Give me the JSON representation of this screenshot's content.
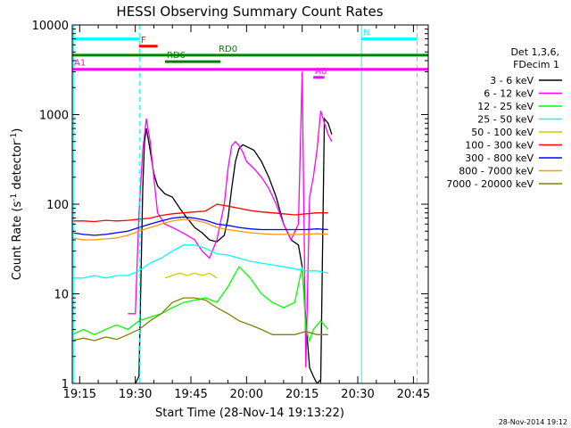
{
  "chart_data": {
    "type": "line",
    "title": "HESSI Observing Summary Count Rates",
    "xlabel": "Start Time (28-Nov-14 19:13:22)",
    "ylabel_main": "Count Rate (s",
    "ylabel_sup1": "-1",
    "ylabel_mid": " detector",
    "ylabel_sup2": "-1",
    "ylabel_end": ")",
    "yscale": "log",
    "ylim": [
      1,
      10000
    ],
    "xlim_minutes": [
      19.0,
      115.0
    ],
    "x_ticks": [
      {
        "minute": 21.0,
        "label": "19:15"
      },
      {
        "minute": 36.0,
        "label": "19:30"
      },
      {
        "minute": 51.0,
        "label": "19:45"
      },
      {
        "minute": 66.0,
        "label": "20:00"
      },
      {
        "minute": 81.0,
        "label": "20:15"
      },
      {
        "minute": 96.0,
        "label": "20:30"
      },
      {
        "minute": 111.0,
        "label": "20:45"
      }
    ],
    "y_ticks": [
      {
        "value": 1,
        "label": "1"
      },
      {
        "value": 10,
        "label": "10"
      },
      {
        "value": 100,
        "label": "100"
      },
      {
        "value": 1000,
        "label": "1000"
      },
      {
        "value": 10000,
        "label": "10000"
      }
    ],
    "legend": {
      "position": "right",
      "header1": "Det 1,3,6,",
      "header2": "FDecim 1",
      "entries": [
        {
          "label": "3 - 6 keV",
          "color": "#000000"
        },
        {
          "label": "6 - 12 keV",
          "color": "#ff00ff"
        },
        {
          "label": "12 - 25 keV",
          "color": "#00ff00"
        },
        {
          "label": "25 - 50 keV",
          "color": "#00ffff"
        },
        {
          "label": "50 - 100 keV",
          "color": "#cccc00"
        },
        {
          "label": "100 - 300 keV",
          "color": "#ff0000"
        },
        {
          "label": "300 - 800 keV",
          "color": "#0000ff"
        },
        {
          "label": "800 - 7000 keV",
          "color": "#ff9900"
        },
        {
          "label": "7000 - 20000 keV",
          "color": "#808000"
        }
      ]
    },
    "flag_bars": [
      {
        "label": "N",
        "color": "#00ffff",
        "segments": [
          [
            19.0,
            37.2
          ],
          [
            97.0,
            112.0
          ]
        ],
        "level": 7000
      },
      {
        "label": "F",
        "color": "#ff0000",
        "segments": [
          [
            37.0,
            42.0
          ]
        ],
        "level": 5800
      },
      {
        "label": "RD0",
        "color": "#008000",
        "segments": [
          [
            19.0,
            58.0
          ],
          [
            58.0,
            115.0
          ]
        ],
        "level": 4600
      },
      {
        "label": "RD6",
        "color": "#008000",
        "segments": [
          [
            44.0,
            59.0
          ]
        ],
        "level": 3900
      },
      {
        "label": "A1",
        "color": "#ff00ff",
        "segments": [
          [
            19.0,
            115.0
          ]
        ],
        "level": 3200
      },
      {
        "label": "A0",
        "color": "#ff00ff",
        "segments": [
          [
            84.0,
            87.0
          ]
        ],
        "level": 2600
      }
    ],
    "vlines": [
      {
        "minute": 19.3,
        "color": "#00ffff",
        "style": "solid"
      },
      {
        "minute": 37.2,
        "color": "#00ffff",
        "style": "dashed"
      },
      {
        "minute": 97.0,
        "color": "#00ffff",
        "style": "solid"
      },
      {
        "minute": 112.0,
        "color": "#00ffff",
        "style": "dashed"
      }
    ],
    "series": [
      {
        "name": "3 - 6 keV",
        "color": "#000000",
        "x": [
          36,
          37,
          38,
          38.5,
          39,
          40,
          41,
          42,
          44,
          46,
          48,
          50,
          52,
          54,
          56,
          58,
          60,
          61,
          62,
          63,
          64,
          65,
          66,
          67,
          68,
          70,
          72,
          74,
          76,
          78,
          80,
          81,
          82,
          83,
          84,
          85,
          86,
          87,
          88,
          89
        ],
        "y": [
          1,
          1.2,
          150,
          500,
          700,
          400,
          220,
          160,
          130,
          120,
          90,
          70,
          55,
          48,
          40,
          38,
          45,
          70,
          150,
          300,
          420,
          460,
          440,
          420,
          400,
          300,
          200,
          120,
          60,
          40,
          35,
          20,
          5,
          1.5,
          1.2,
          1,
          1.1,
          900,
          800,
          600
        ]
      },
      {
        "name": "6 - 12 keV",
        "color": "#ff00ff",
        "x": [
          34,
          35,
          36,
          37,
          38,
          39,
          40,
          41,
          42,
          44,
          46,
          48,
          50,
          52,
          54,
          56,
          58,
          60,
          61,
          62,
          63,
          64,
          65,
          66,
          68,
          70,
          72,
          74,
          76,
          78,
          80,
          81,
          82,
          83,
          84,
          85,
          86,
          87,
          88,
          89
        ],
        "y": [
          6,
          6,
          6,
          80,
          400,
          900,
          500,
          200,
          80,
          60,
          55,
          50,
          45,
          40,
          30,
          25,
          40,
          100,
          250,
          450,
          500,
          450,
          380,
          300,
          250,
          200,
          150,
          100,
          60,
          40,
          60,
          3000,
          1.5,
          120,
          200,
          400,
          1100,
          800,
          600,
          500
        ]
      },
      {
        "name": "12 - 25 keV",
        "color": "#00ff00",
        "x": [
          19,
          22,
          25,
          28,
          31,
          34,
          37,
          40,
          43,
          46,
          49,
          52,
          55,
          58,
          61,
          64,
          67,
          70,
          73,
          76,
          79,
          81,
          82,
          83,
          84,
          86,
          88
        ],
        "y": [
          3.5,
          4,
          3.5,
          4,
          4.5,
          4,
          5,
          5.5,
          6,
          7,
          8,
          8.5,
          9,
          8,
          12,
          20,
          15,
          10,
          8,
          7,
          8,
          20,
          4,
          3,
          4,
          5,
          4
        ]
      },
      {
        "name": "25 - 50 keV",
        "color": "#00ffff",
        "x": [
          19,
          22,
          25,
          28,
          31,
          34,
          37,
          40,
          43,
          46,
          49,
          52,
          55,
          58,
          61,
          64,
          67,
          70,
          73,
          76,
          79,
          82,
          85,
          88
        ],
        "y": [
          15,
          15,
          16,
          15,
          16,
          16,
          18,
          22,
          25,
          30,
          35,
          35,
          32,
          28,
          27,
          25,
          23,
          22,
          21,
          20,
          19,
          18,
          18,
          17
        ]
      },
      {
        "name": "50 - 100 keV",
        "color": "#cccc00",
        "x": [
          44,
          46,
          48,
          50,
          52,
          54,
          56,
          58
        ],
        "y": [
          15,
          16,
          17,
          16,
          17,
          16,
          17,
          15
        ]
      },
      {
        "name": "100 - 300 keV",
        "color": "#ff0000",
        "x": [
          19,
          22,
          25,
          28,
          31,
          34,
          37,
          40,
          43,
          46,
          49,
          52,
          55,
          58,
          61,
          64,
          67,
          70,
          73,
          76,
          79,
          82,
          85,
          88
        ],
        "y": [
          65,
          65,
          64,
          66,
          65,
          66,
          68,
          70,
          75,
          78,
          80,
          82,
          84,
          100,
          95,
          90,
          85,
          82,
          80,
          78,
          76,
          78,
          80,
          80
        ]
      },
      {
        "name": "300 - 800 keV",
        "color": "#0000ff",
        "x": [
          19,
          22,
          25,
          28,
          31,
          34,
          37,
          40,
          43,
          46,
          49,
          52,
          55,
          58,
          61,
          64,
          67,
          70,
          73,
          76,
          79,
          82,
          85,
          88
        ],
        "y": [
          48,
          46,
          45,
          46,
          48,
          50,
          55,
          60,
          65,
          70,
          72,
          70,
          66,
          60,
          58,
          55,
          53,
          52,
          52,
          52,
          52,
          52,
          53,
          52
        ]
      },
      {
        "name": "800 - 7000 keV",
        "color": "#ff9900",
        "x": [
          19,
          22,
          25,
          28,
          31,
          34,
          37,
          40,
          43,
          46,
          49,
          52,
          55,
          58,
          61,
          64,
          67,
          70,
          73,
          76,
          79,
          82,
          85,
          88
        ],
        "y": [
          42,
          40,
          40,
          41,
          42,
          45,
          50,
          55,
          60,
          65,
          68,
          66,
          62,
          55,
          52,
          50,
          48,
          47,
          46,
          46,
          46,
          46,
          47,
          46
        ]
      },
      {
        "name": "7000 - 20000 keV",
        "color": "#808000",
        "x": [
          19,
          22,
          25,
          28,
          31,
          34,
          37,
          40,
          43,
          46,
          49,
          52,
          55,
          58,
          61,
          64,
          67,
          70,
          73,
          76,
          79,
          82,
          85,
          88
        ],
        "y": [
          3,
          3.2,
          3,
          3.3,
          3.1,
          3.5,
          4,
          5,
          6,
          8,
          9,
          9,
          8.5,
          7,
          6,
          5,
          4.5,
          4,
          3.5,
          3.5,
          3.5,
          3.8,
          3.5,
          3.5
        ]
      }
    ]
  },
  "footer_date": "28-Nov-2014 19:12"
}
